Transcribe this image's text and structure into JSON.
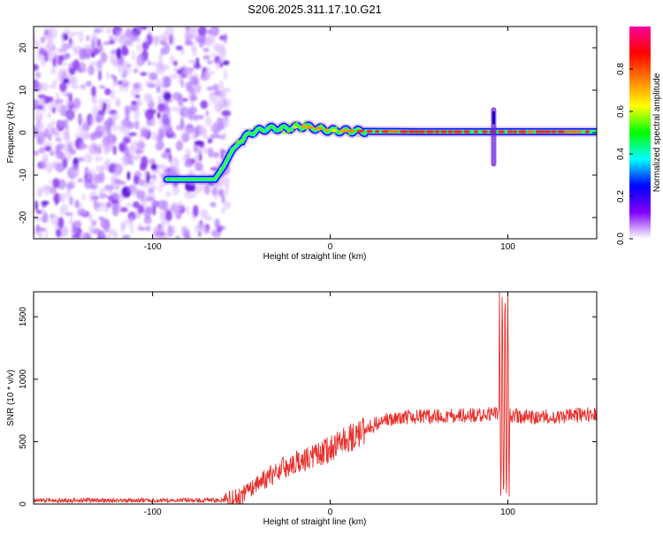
{
  "title": "S206.2025.311.17.10.G21",
  "chart_data": [
    {
      "type": "heatmap",
      "name": "spectrogram",
      "xlabel": "Height of straight line (km)",
      "ylabel": "Frequency (Hz)",
      "xlim": [
        -167,
        150
      ],
      "ylim": [
        -25,
        25
      ],
      "xticks": [
        -100,
        0,
        100
      ],
      "xtick_labels": [
        "-100",
        "0",
        "100"
      ],
      "yticks": [
        -20,
        -10,
        0,
        10,
        20
      ],
      "ytick_labels": [
        "-20",
        "-10",
        "0",
        "10",
        "20"
      ],
      "colorbar": {
        "label": "Normalized spectral amplitude",
        "range": [
          0,
          1
        ],
        "ticks": [
          0.0,
          0.2,
          0.4,
          0.6,
          0.8
        ],
        "tick_labels": [
          "0.0",
          "0.2",
          "0.4",
          "0.6",
          "0.8"
        ],
        "stops": [
          "#ffffff",
          "#8000ff",
          "#0000ff",
          "#00ffff",
          "#00ff00",
          "#ffff00",
          "#ff8000",
          "#ff0000",
          "#ff00a0"
        ]
      },
      "ridge": {
        "x": [
          -92,
          -65,
          -60,
          -55,
          -45,
          -35,
          -25,
          -15,
          0,
          20,
          50,
          100,
          150
        ],
        "y": [
          -11,
          -11,
          -8,
          -4,
          0,
          1,
          1,
          1.5,
          0.5,
          0.3,
          0.2,
          0.2,
          0.2
        ]
      },
      "noise_region_x": [
        -167,
        -58
      ],
      "spike": {
        "x": 92,
        "y_range": [
          -8,
          6
        ]
      }
    },
    {
      "type": "line",
      "name": "snr",
      "xlabel": "Height of straight line (km)",
      "ylabel": "SNR (10 * v/v)",
      "xlim": [
        -167,
        150
      ],
      "ylim": [
        0,
        1700
      ],
      "xticks": [
        -100,
        0,
        100
      ],
      "xtick_labels": [
        "-100",
        "0",
        "100"
      ],
      "yticks": [
        0,
        500,
        1000,
        1500
      ],
      "ytick_labels": [
        "0",
        "500",
        "1000",
        "1500"
      ],
      "color": "#e8302c",
      "trend": {
        "x": [
          -167,
          -60,
          -50,
          -40,
          -30,
          -20,
          -10,
          0,
          10,
          20,
          30,
          45,
          60,
          80,
          90,
          110,
          130,
          150
        ],
        "y": [
          30,
          30,
          60,
          180,
          260,
          330,
          380,
          440,
          520,
          600,
          680,
          700,
          700,
          710,
          720,
          700,
          700,
          720
        ]
      },
      "spike": {
        "x": 98,
        "max": 1700,
        "min": 60
      }
    }
  ]
}
